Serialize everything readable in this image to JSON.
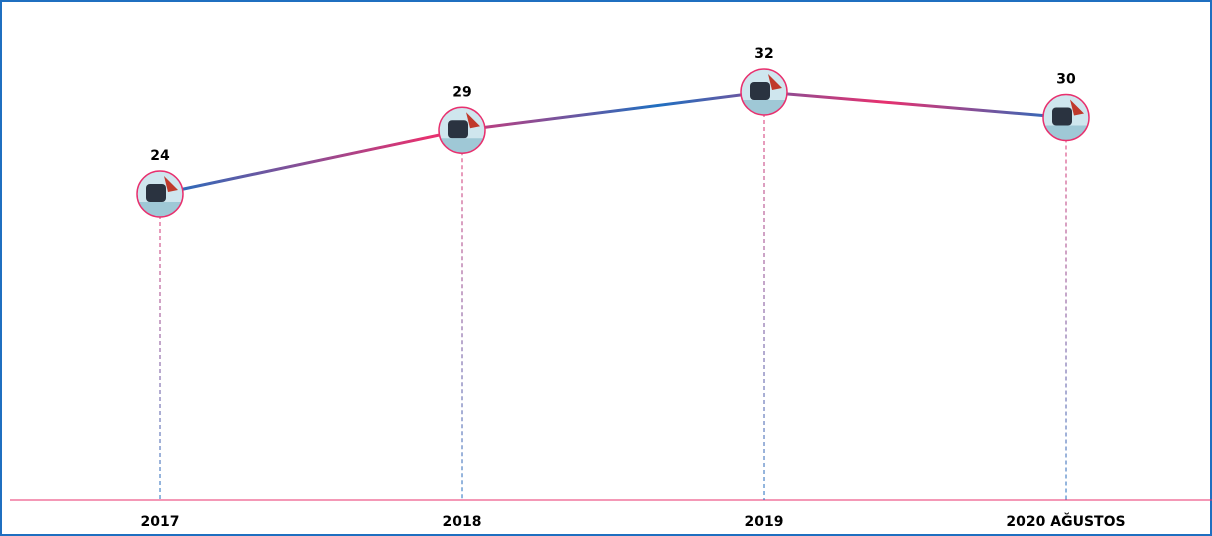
{
  "chart_data": {
    "type": "line",
    "categories": [
      "2017",
      "2018",
      "2019",
      "2020 AĞUSTOS"
    ],
    "values": [
      24,
      29,
      32,
      30
    ],
    "colors": [
      "#1f6fc0",
      "#e8306e"
    ]
  }
}
